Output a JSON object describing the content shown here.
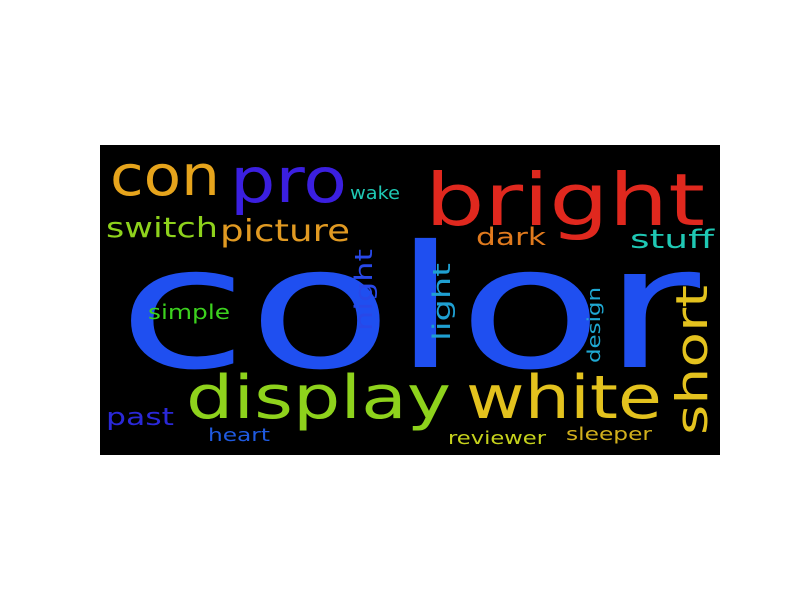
{
  "background_color": "#000000",
  "page_background": "#ffffff",
  "words": [
    {
      "text": "color",
      "color": "#1f4ff0"
    },
    {
      "text": "bright",
      "color": "#e0281e"
    },
    {
      "text": "display",
      "color": "#8ed21c"
    },
    {
      "text": "white",
      "color": "#e3c21e"
    },
    {
      "text": "pro",
      "color": "#3b1fe0"
    },
    {
      "text": "con",
      "color": "#e6a41c"
    },
    {
      "text": "short",
      "color": "#e3c21e"
    },
    {
      "text": "picture",
      "color": "#e19a22"
    },
    {
      "text": "switch",
      "color": "#8ed21c"
    },
    {
      "text": "stuff",
      "color": "#1fc8b4"
    },
    {
      "text": "dark",
      "color": "#e07a1e"
    },
    {
      "text": "night",
      "color": "#2848e8"
    },
    {
      "text": "light",
      "color": "#1fa0d2"
    },
    {
      "text": "past",
      "color": "#2a28d8"
    },
    {
      "text": "simple",
      "color": "#3cd21e"
    },
    {
      "text": "design",
      "color": "#1fa8d2"
    },
    {
      "text": "wake",
      "color": "#1fc8b4"
    },
    {
      "text": "heart",
      "color": "#1f5ae0"
    },
    {
      "text": "reviewer",
      "color": "#c6d21c"
    },
    {
      "text": "sleeper",
      "color": "#d2b01c"
    }
  ]
}
